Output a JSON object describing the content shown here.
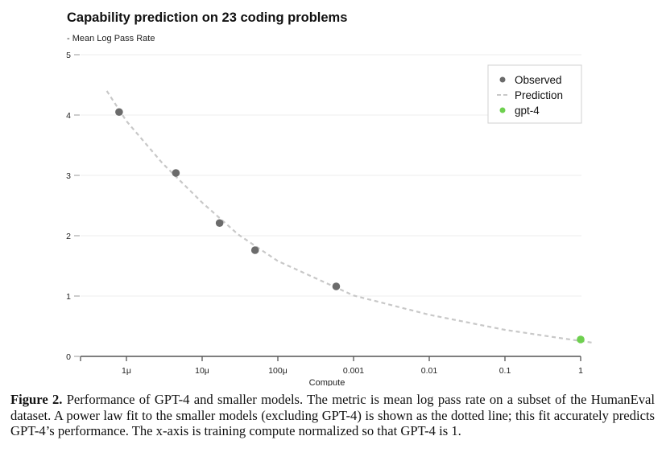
{
  "chart_data": {
    "type": "scatter",
    "title": "Capability prediction on 23 coding problems",
    "ylabel": "- Mean Log Pass Rate",
    "xlabel": "Compute",
    "xscale": "log",
    "xlim": [
      2.5e-07,
      1.4
    ],
    "ylim": [
      0,
      5
    ],
    "grid": true,
    "yticks": [
      {
        "value": 0,
        "label": "0"
      },
      {
        "value": 1,
        "label": "1"
      },
      {
        "value": 2,
        "label": "2"
      },
      {
        "value": 3,
        "label": "3"
      },
      {
        "value": 4,
        "label": "4"
      },
      {
        "value": 5,
        "label": "5"
      }
    ],
    "xticks": [
      {
        "value": 1e-06,
        "label": "1μ"
      },
      {
        "value": 1e-05,
        "label": "10μ"
      },
      {
        "value": 0.0001,
        "label": "100μ"
      },
      {
        "value": 0.001,
        "label": "0.001"
      },
      {
        "value": 0.01,
        "label": "0.01"
      },
      {
        "value": 0.1,
        "label": "0.1"
      },
      {
        "value": 1,
        "label": "1"
      }
    ],
    "legend_position": "top-right",
    "series": [
      {
        "name": "Observed",
        "kind": "points",
        "color": "#6b6b6b",
        "points": [
          {
            "x": 8e-07,
            "y": 4.05
          },
          {
            "x": 4.5e-06,
            "y": 3.04
          },
          {
            "x": 1.7e-05,
            "y": 2.21
          },
          {
            "x": 5e-05,
            "y": 1.76
          },
          {
            "x": 0.00059,
            "y": 1.16
          }
        ]
      },
      {
        "name": "Prediction",
        "kind": "dashed-line",
        "color": "#c8c8c8",
        "points": [
          {
            "x": 5.5e-07,
            "y": 4.4
          },
          {
            "x": 1e-06,
            "y": 3.9
          },
          {
            "x": 3e-06,
            "y": 3.2
          },
          {
            "x": 1e-05,
            "y": 2.55
          },
          {
            "x": 3e-05,
            "y": 2.02
          },
          {
            "x": 0.0001,
            "y": 1.58
          },
          {
            "x": 0.001,
            "y": 1.01
          },
          {
            "x": 0.01,
            "y": 0.69
          },
          {
            "x": 0.1,
            "y": 0.44
          },
          {
            "x": 0.5,
            "y": 0.31
          },
          {
            "x": 1.4,
            "y": 0.23
          }
        ]
      },
      {
        "name": "gpt-4",
        "kind": "points",
        "color": "#6ed04f",
        "points": [
          {
            "x": 1.0,
            "y": 0.28
          }
        ]
      }
    ]
  },
  "caption": {
    "label": "Figure 2.",
    "text": " Performance of GPT-4 and smaller models. The metric is mean log pass rate on a subset of the HumanEval dataset. A power law fit to the smaller models (excluding GPT-4) is shown as the dotted line; this fit accurately predicts GPT-4’s performance. The x-axis is training compute normalized so that GPT-4 is 1."
  }
}
